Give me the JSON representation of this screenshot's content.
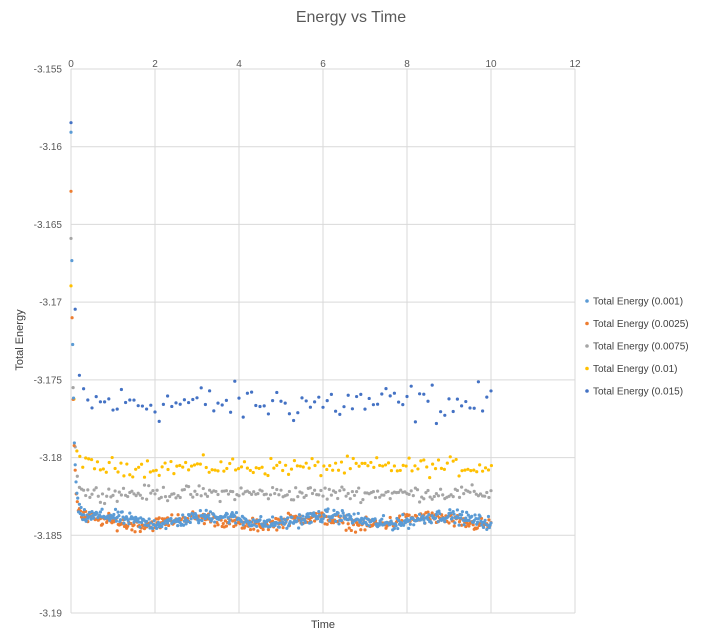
{
  "chart_data": {
    "type": "scatter",
    "title": "Energy vs Time",
    "xlabel": "Time",
    "ylabel": "Total Energy",
    "xlim": [
      0,
      12
    ],
    "ylim": [
      -3.19,
      -3.155
    ],
    "xticks": [
      0,
      2,
      4,
      6,
      8,
      10,
      12
    ],
    "xtick_labels": [
      "0",
      "2",
      "4",
      "6",
      "8",
      "10",
      "12"
    ],
    "yticks": [
      -3.155,
      -3.16,
      -3.165,
      -3.17,
      -3.175,
      -3.18,
      -3.185,
      -3.19
    ],
    "ytick_labels": [
      "-3.155",
      "-3.16",
      "-3.165",
      "-3.17",
      "-3.175",
      "-3.18",
      "-3.185",
      "-3.19"
    ],
    "grid": true,
    "legend_position": "right",
    "series": [
      {
        "name": "Total Energy (0.001)",
        "color": "#5b9bd5",
        "dt": 0.02,
        "start": -3.159,
        "settle_mean": -3.184,
        "noise": 0.00035,
        "tau": 0.05
      },
      {
        "name": "Total Energy (0.0025)",
        "color": "#ed7d31",
        "dt": 0.025,
        "start": -3.163,
        "settle_mean": -3.1841,
        "noise": 0.00035,
        "tau": 0.05
      },
      {
        "name": "Total Energy (0.0075)",
        "color": "#a5a5a5",
        "dt": 0.05,
        "start": -3.166,
        "settle_mean": -3.1823,
        "noise": 0.0004,
        "tau": 0.06
      },
      {
        "name": "Total Energy (0.01)",
        "color": "#ffc000",
        "dt": 0.07,
        "start": -3.169,
        "settle_mean": -3.1806,
        "noise": 0.0005,
        "tau": 0.07
      },
      {
        "name": "Total Energy (0.015)",
        "color": "#4472c4",
        "dt": 0.1,
        "start": -3.1585,
        "settle_mean": -3.1765,
        "noise": 0.0011,
        "tau": 0.08
      }
    ]
  }
}
